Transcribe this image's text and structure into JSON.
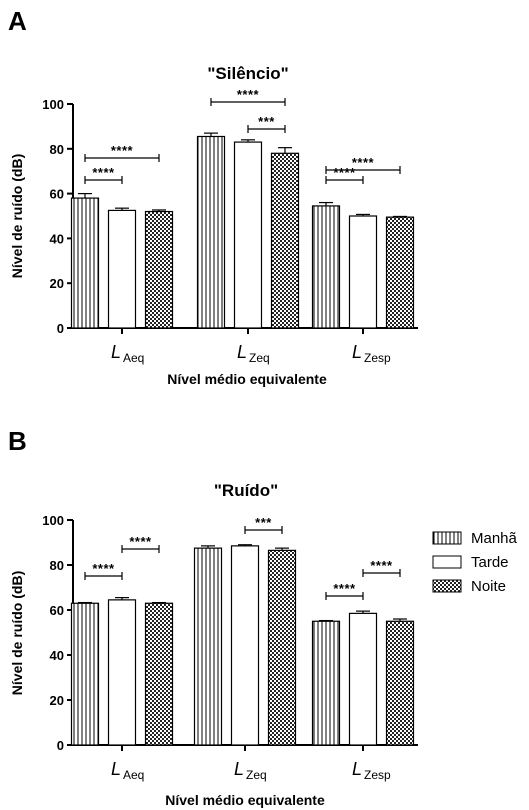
{
  "colors": {
    "ink": "#000000",
    "background": "#ffffff"
  },
  "legend": {
    "placement": "right",
    "entries": [
      {
        "label": "Manhã",
        "pattern": "vertical-stripes"
      },
      {
        "label": "Tarde",
        "pattern": "blank"
      },
      {
        "label": "Noite",
        "pattern": "checker"
      }
    ]
  },
  "chart_data": [
    {
      "panel": "A",
      "type": "bar",
      "title": "\"Silêncio\"",
      "ylabel": "Nível de ruído (dB)",
      "xlabel": "Nível médio equivalente",
      "ylim": [
        0,
        100
      ],
      "yticks": [
        0,
        20,
        40,
        60,
        80,
        100
      ],
      "grid": false,
      "categories": [
        {
          "main": "L",
          "sub": "Aeq"
        },
        {
          "main": "L",
          "sub": "Zeq"
        },
        {
          "main": "L",
          "sub": "Zesp"
        }
      ],
      "series": [
        {
          "name": "Manhã",
          "pattern": "vertical-stripes",
          "values": [
            58,
            85.5,
            54.5
          ],
          "errors": [
            2,
            1.5,
            1.5
          ]
        },
        {
          "name": "Tarde",
          "pattern": "blank",
          "values": [
            52.5,
            83,
            50
          ],
          "errors": [
            1,
            1,
            0.7
          ]
        },
        {
          "name": "Noite",
          "pattern": "checker",
          "values": [
            52,
            78,
            49.5
          ],
          "errors": [
            0.7,
            2.5,
            0.3
          ]
        }
      ],
      "significance": [
        {
          "category": 0,
          "from": 0,
          "to": 1,
          "label": "****"
        },
        {
          "category": 0,
          "from": 0,
          "to": 2,
          "label": "****"
        },
        {
          "category": 1,
          "from": 0,
          "to": 2,
          "label": "****"
        },
        {
          "category": 1,
          "from": 1,
          "to": 2,
          "label": "***"
        },
        {
          "category": 2,
          "from": 0,
          "to": 1,
          "label": "****"
        },
        {
          "category": 2,
          "from": 0,
          "to": 2,
          "label": "****"
        }
      ]
    },
    {
      "panel": "B",
      "type": "bar",
      "title": "\"Ruído\"",
      "ylabel": "Nível de ruído (dB)",
      "xlabel": "Nível médio equivalente",
      "ylim": [
        0,
        100
      ],
      "yticks": [
        0,
        20,
        40,
        60,
        80,
        100
      ],
      "grid": false,
      "categories": [
        {
          "main": "L",
          "sub": "Aeq"
        },
        {
          "main": "L",
          "sub": "Zeq"
        },
        {
          "main": "L",
          "sub": "Zesp"
        }
      ],
      "series": [
        {
          "name": "Manhã",
          "pattern": "vertical-stripes",
          "values": [
            63,
            87.5,
            55
          ],
          "errors": [
            0.3,
            1,
            0.3
          ]
        },
        {
          "name": "Tarde",
          "pattern": "blank",
          "values": [
            64.5,
            88.5,
            58.5
          ],
          "errors": [
            1,
            0.5,
            1
          ]
        },
        {
          "name": "Noite",
          "pattern": "checker",
          "values": [
            63,
            86.5,
            55
          ],
          "errors": [
            0.3,
            1,
            1
          ]
        }
      ],
      "significance": [
        {
          "category": 0,
          "from": 0,
          "to": 1,
          "label": "****"
        },
        {
          "category": 0,
          "from": 1,
          "to": 2,
          "label": "****"
        },
        {
          "category": 1,
          "from": 1,
          "to": 2,
          "label": "***"
        },
        {
          "category": 2,
          "from": 0,
          "to": 1,
          "label": "****"
        },
        {
          "category": 2,
          "from": 1,
          "to": 2,
          "label": "****"
        }
      ]
    }
  ]
}
